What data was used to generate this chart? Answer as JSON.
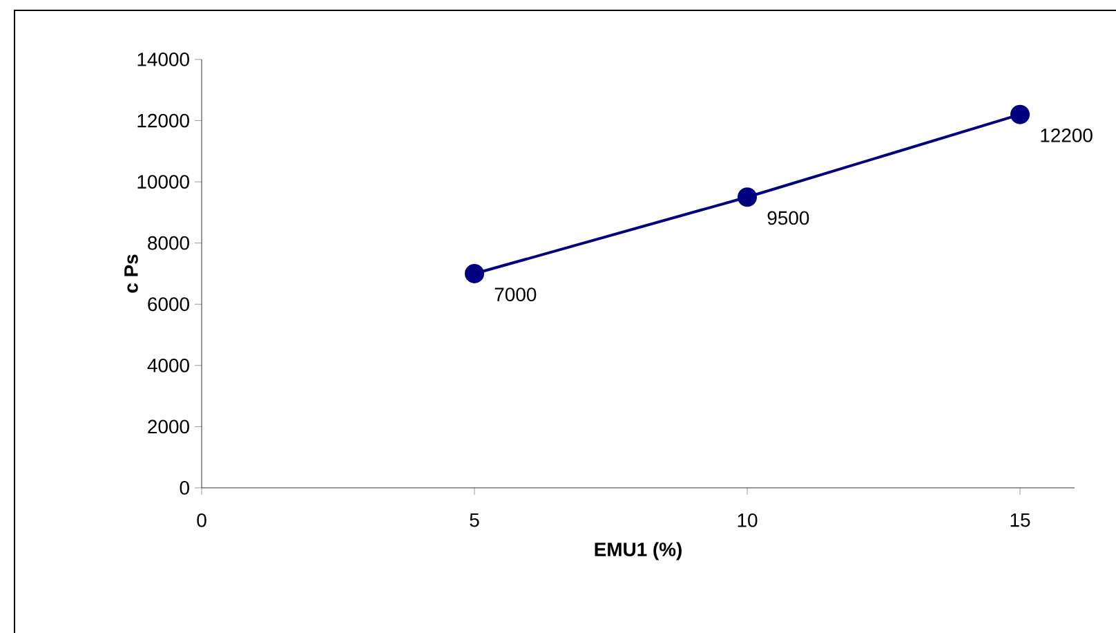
{
  "chart_data": {
    "type": "line",
    "xlabel": "EMU1 (%)",
    "ylabel": "c Ps",
    "x": [
      5,
      10,
      15
    ],
    "values": [
      7000,
      9500,
      12200
    ],
    "color": "#000080",
    "marker": "circle",
    "line_style": "solid",
    "data_labels": true,
    "xlim": [
      0,
      16
    ],
    "xticks": [
      0,
      5,
      10,
      15
    ],
    "ylim": [
      0,
      14000
    ],
    "yticks": [
      0,
      2000,
      4000,
      6000,
      8000,
      10000,
      12000,
      14000
    ],
    "grid": false
  }
}
